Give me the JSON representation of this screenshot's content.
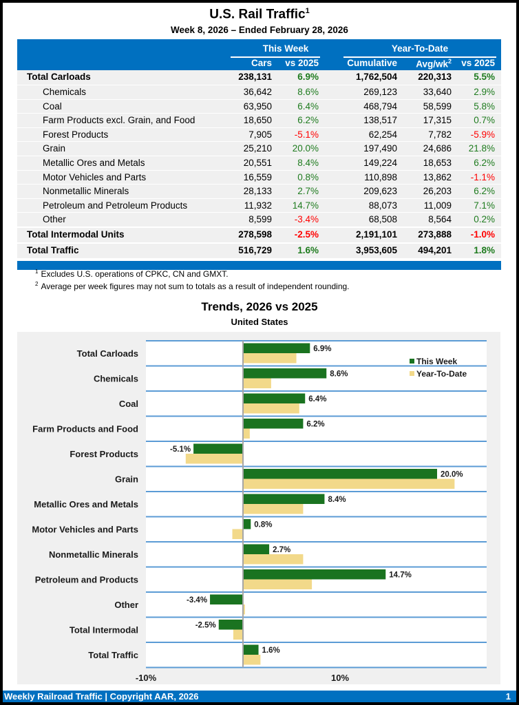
{
  "header": {
    "title": "U.S. Rail Traffic",
    "title_sup": "1",
    "subtitle": "Week 8, 2026 – Ended February 28, 2026"
  },
  "table": {
    "group_headers": [
      "This Week",
      "Year-To-Date"
    ],
    "columns": [
      "Cars",
      "vs 2025",
      "Cumulative",
      "Avg/wk",
      "vs 2025"
    ],
    "avg_sup": "2",
    "rows": [
      {
        "label": "Total Carloads",
        "cars": "238,131",
        "wk_pct": "6.9%",
        "cum": "1,762,504",
        "avg": "220,313",
        "ytd_pct": "5.5%",
        "total": true
      },
      {
        "label": "Chemicals",
        "cars": "36,642",
        "wk_pct": "8.6%",
        "cum": "269,123",
        "avg": "33,640",
        "ytd_pct": "2.9%"
      },
      {
        "label": "Coal",
        "cars": "63,950",
        "wk_pct": "6.4%",
        "cum": "468,794",
        "avg": "58,599",
        "ytd_pct": "5.8%"
      },
      {
        "label": "Farm Products excl. Grain, and Food",
        "cars": "18,650",
        "wk_pct": "6.2%",
        "cum": "138,517",
        "avg": "17,315",
        "ytd_pct": "0.7%"
      },
      {
        "label": "Forest Products",
        "cars": "7,905",
        "wk_pct": "-5.1%",
        "cum": "62,254",
        "avg": "7,782",
        "ytd_pct": "-5.9%"
      },
      {
        "label": "Grain",
        "cars": "25,210",
        "wk_pct": "20.0%",
        "cum": "197,490",
        "avg": "24,686",
        "ytd_pct": "21.8%"
      },
      {
        "label": "Metallic Ores and Metals",
        "cars": "20,551",
        "wk_pct": "8.4%",
        "cum": "149,224",
        "avg": "18,653",
        "ytd_pct": "6.2%"
      },
      {
        "label": "Motor Vehicles and Parts",
        "cars": "16,559",
        "wk_pct": "0.8%",
        "cum": "110,898",
        "avg": "13,862",
        "ytd_pct": "-1.1%"
      },
      {
        "label": "Nonmetallic Minerals",
        "cars": "28,133",
        "wk_pct": "2.7%",
        "cum": "209,623",
        "avg": "26,203",
        "ytd_pct": "6.2%"
      },
      {
        "label": "Petroleum and Petroleum Products",
        "cars": "11,932",
        "wk_pct": "14.7%",
        "cum": "88,073",
        "avg": "11,009",
        "ytd_pct": "7.1%"
      },
      {
        "label": "Other",
        "cars": "8,599",
        "wk_pct": "-3.4%",
        "cum": "68,508",
        "avg": "8,564",
        "ytd_pct": "0.2%"
      },
      {
        "label": "Total Intermodal Units",
        "cars": "278,598",
        "wk_pct": "-2.5%",
        "cum": "2,191,101",
        "avg": "273,888",
        "ytd_pct": "-1.0%",
        "total": true
      },
      {
        "label": "Total Traffic",
        "cars": "516,729",
        "wk_pct": "1.6%",
        "cum": "3,953,605",
        "avg": "494,201",
        "ytd_pct": "1.8%",
        "total": true
      }
    ]
  },
  "footnotes": [
    {
      "mark": "1",
      "text": "Excludes U.S. operations of CPKC, CN and GMXT."
    },
    {
      "mark": "2",
      "text": "Average per week figures may not sum to totals as a result of independent rounding."
    }
  ],
  "colors": {
    "brand_blue": "#0070c0",
    "positive": "#1e7b1e",
    "negative": "#ff0000",
    "this_week_bar": "#1a7320",
    "ytd_bar": "#f2d98a",
    "gridline": "#5b9bd5"
  },
  "chart_data": {
    "type": "bar",
    "orientation": "horizontal",
    "title": "Trends, 2026 vs 2025",
    "subtitle": "United States",
    "categories": [
      "Total Carloads",
      "Chemicals",
      "Coal",
      "Farm Products and Food",
      "Forest Products",
      "Grain",
      "Metallic Ores and Metals",
      "Motor Vehicles and Parts",
      "Nonmetallic Minerals",
      "Petroleum and Products",
      "Other",
      "Total Intermodal",
      "Total Traffic"
    ],
    "series": [
      {
        "name": "This Week",
        "values": [
          6.9,
          8.6,
          6.4,
          6.2,
          -5.1,
          20.0,
          8.4,
          0.8,
          2.7,
          14.7,
          -3.4,
          -2.5,
          1.6
        ]
      },
      {
        "name": "Year-To-Date",
        "values": [
          5.5,
          2.9,
          5.8,
          0.7,
          -5.9,
          21.8,
          6.2,
          -1.1,
          6.2,
          7.1,
          0.2,
          -1.0,
          1.8
        ]
      }
    ],
    "data_labels": [
      "6.9%",
      "8.6%",
      "6.4%",
      "6.2%",
      "-5.1%",
      "20.0%",
      "8.4%",
      "0.8%",
      "2.7%",
      "14.7%",
      "-3.4%",
      "-2.5%",
      "1.6%"
    ],
    "xlim": [
      -10,
      25
    ],
    "xticks": [
      -10,
      10
    ],
    "xtick_labels": [
      "-10%",
      "10%"
    ],
    "legend": "top-right",
    "grid": true
  },
  "footer": {
    "text": "Weekly Railroad Traffic | Copyright AAR, 2026",
    "page": "1"
  }
}
